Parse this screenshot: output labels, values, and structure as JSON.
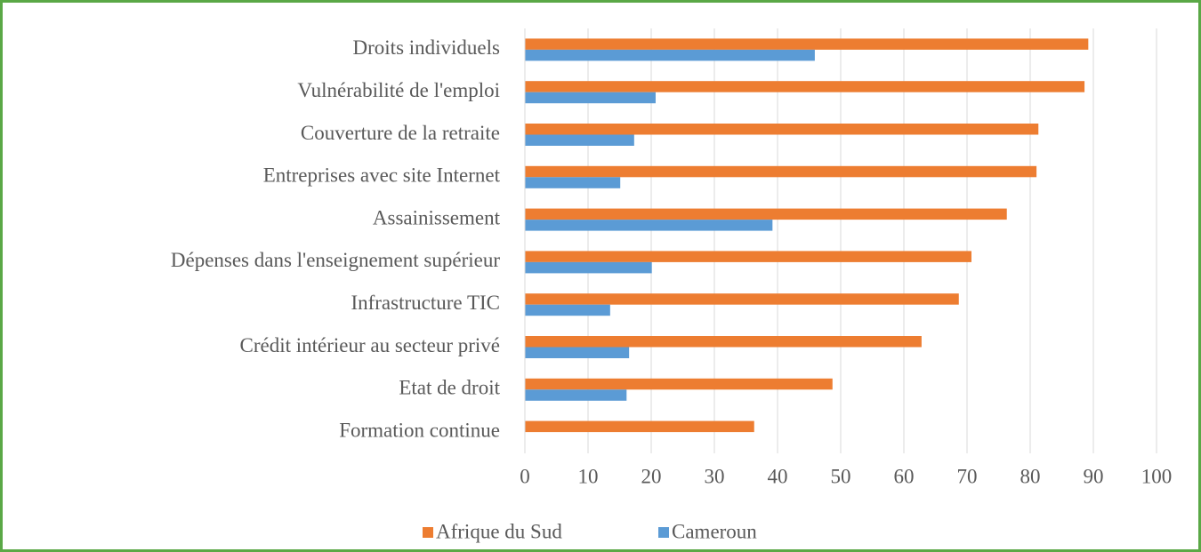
{
  "chart_data": {
    "type": "barh",
    "categories": [
      "Droits individuels",
      "Vulnérabilité de l'emploi",
      "Couverture de la retraite",
      "Entreprises avec site Internet",
      "Assainissement",
      "Dépenses dans l'enseignement supérieur",
      "Infrastructure TIC",
      "Crédit intérieur au secteur privé",
      "Etat de droit",
      "Formation continue"
    ],
    "series": [
      {
        "name": "Afrique du Sud",
        "color": "#ed7d31",
        "values": [
          89.2,
          88.6,
          81.3,
          81.0,
          76.3,
          70.7,
          68.7,
          62.8,
          48.7,
          36.3
        ]
      },
      {
        "name": "Cameroun",
        "color": "#5b9bd5",
        "values": [
          45.9,
          20.7,
          17.3,
          15.1,
          39.2,
          20.1,
          13.5,
          16.5,
          16.1,
          null
        ]
      }
    ],
    "xlim": [
      0,
      100
    ],
    "xticks": [
      0,
      10,
      20,
      30,
      40,
      50,
      60,
      70,
      80,
      90,
      100
    ],
    "grid": true,
    "legend": "bottom"
  }
}
